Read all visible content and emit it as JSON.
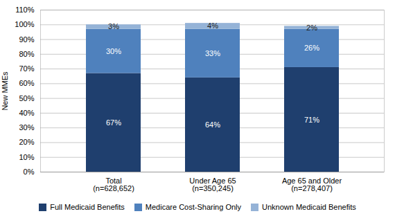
{
  "chart_data": {
    "type": "bar",
    "stacked": true,
    "categories": [
      "Total\n(n=628,652)",
      "Under Age 65\n(n=350,245)",
      "Age 65 and Older\n(n=278,407)"
    ],
    "series": [
      {
        "name": "Full Medicaid Benefits",
        "color": "#1F3F6E",
        "values": [
          67,
          64,
          71
        ],
        "value_labels": [
          "67%",
          "64%",
          "71%"
        ]
      },
      {
        "name": "Medicare Cost-Sharing Only",
        "color": "#4F81BD",
        "values": [
          30,
          33,
          26
        ],
        "value_labels": [
          "30%",
          "33%",
          "26%"
        ]
      },
      {
        "name": "Unknown Medicaid Benefits",
        "color": "#95B3D7",
        "values": [
          3,
          4,
          2
        ],
        "value_labels": [
          "3%",
          "4%",
          "2%"
        ]
      }
    ],
    "ylabel": "New MMEs",
    "ylim": [
      0,
      110
    ],
    "yticks": [
      {
        "value": 0,
        "label": "0%"
      },
      {
        "value": 10,
        "label": "10%"
      },
      {
        "value": 20,
        "label": "20%"
      },
      {
        "value": 30,
        "label": "30%"
      },
      {
        "value": 40,
        "label": "40%"
      },
      {
        "value": 50,
        "label": "50%"
      },
      {
        "value": 60,
        "label": "60%"
      },
      {
        "value": 70,
        "label": "70%"
      },
      {
        "value": 80,
        "label": "80%"
      },
      {
        "value": 90,
        "label": "90%"
      },
      {
        "value": 100,
        "label": "100%"
      },
      {
        "value": 110,
        "label": "110%"
      }
    ],
    "grid": true,
    "data_labels": true,
    "legend": "bottom"
  }
}
